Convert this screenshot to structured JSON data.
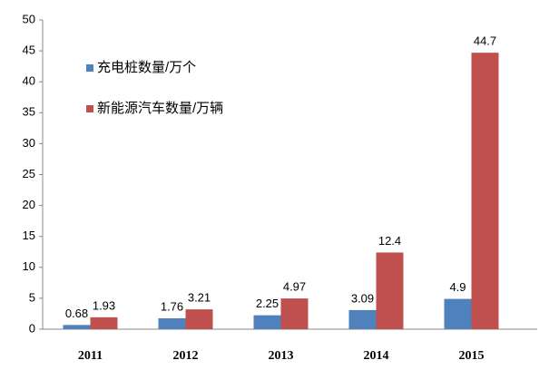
{
  "chart_data": {
    "type": "bar",
    "categories": [
      "2011",
      "2012",
      "2013",
      "2014",
      "2015"
    ],
    "series": [
      {
        "name": "充电桩数量/万个",
        "color": "#4f81bd",
        "values": [
          0.68,
          1.76,
          2.25,
          3.09,
          4.9
        ]
      },
      {
        "name": "新能源汽车数量/万辆",
        "color": "#c0504d",
        "values": [
          1.93,
          3.21,
          4.97,
          12.4,
          44.7
        ]
      }
    ],
    "ylim": [
      0,
      50
    ],
    "yticks": [
      0,
      5,
      10,
      15,
      20,
      25,
      30,
      35,
      40,
      45,
      50
    ],
    "grid": false,
    "legend": "upper-left"
  }
}
